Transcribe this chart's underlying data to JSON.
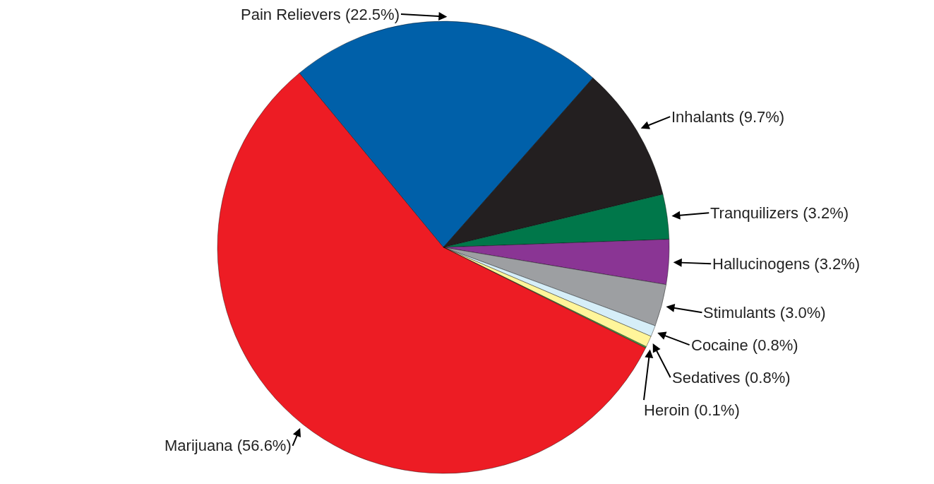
{
  "chart_data": {
    "type": "pie",
    "categories": [
      "Pain Relievers (22.5%)",
      "Inhalants (9.7%)",
      "Tranquilizers (3.2%)",
      "Hallucinogens (3.2%)",
      "Stimulants (3.0%)",
      "Cocaine (0.8%)",
      "Sedatives (0.8%)",
      "Heroin (0.1%)",
      "Marijuana (56.6%)"
    ],
    "values": [
      22.5,
      9.7,
      3.2,
      3.2,
      3.0,
      0.8,
      0.8,
      0.1,
      56.6
    ],
    "colors": [
      "#0060a9",
      "#231f20",
      "#00774a",
      "#8a3594",
      "#9d9fa2",
      "#d6eef8",
      "#fff59a",
      "#4aa84a",
      "#ed1c24"
    ],
    "legend": false
  }
}
